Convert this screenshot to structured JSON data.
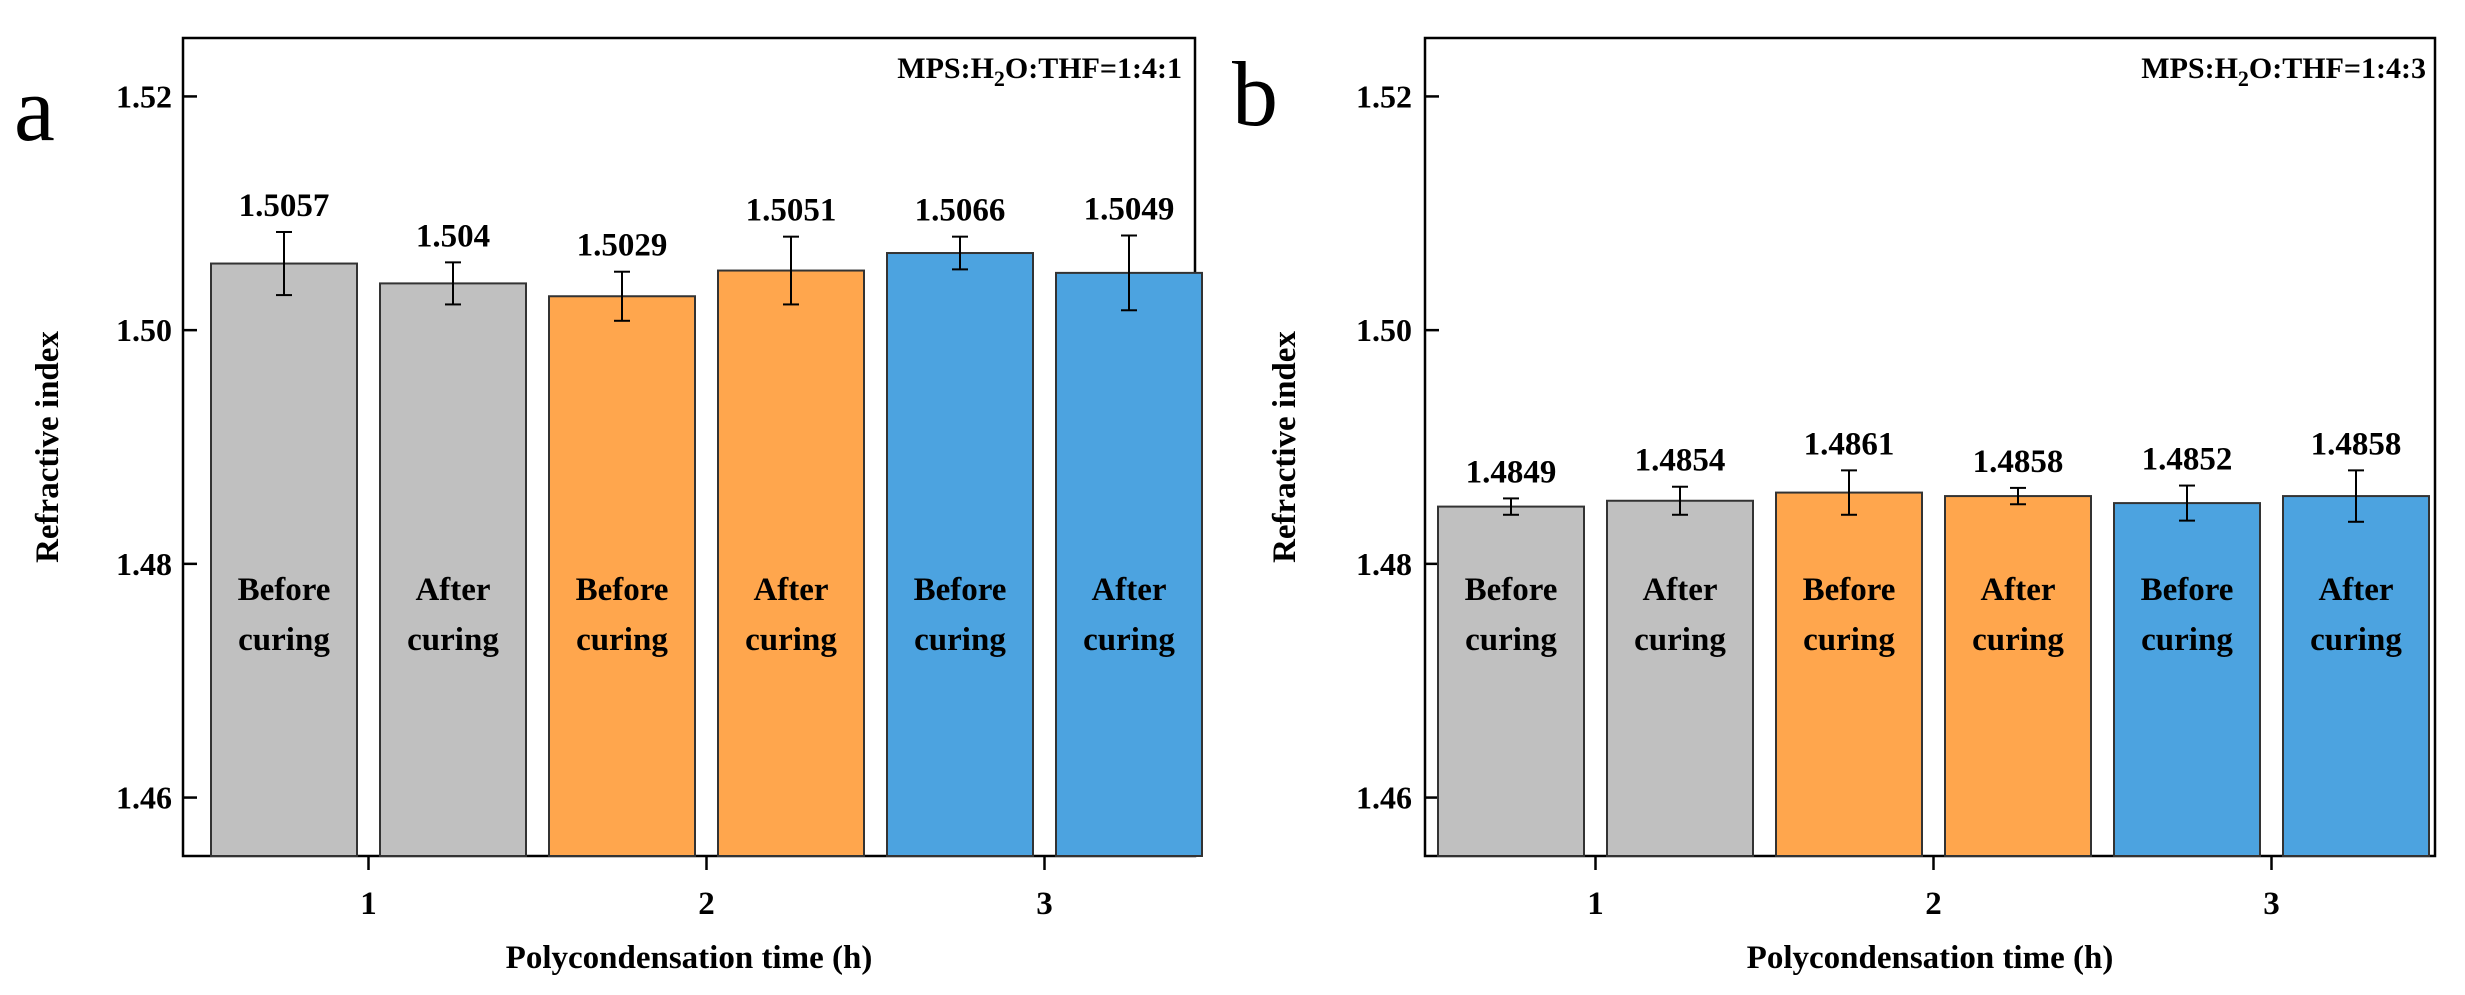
{
  "chart_data": [
    {
      "panel_label": "a",
      "type": "bar",
      "annotation": {
        "prefix": "MPS:H",
        "subscript": "2",
        "suffix": "O:THF=1:4:1"
      },
      "xlabel": "Polycondensation time (h)",
      "ylabel": "Refractive index",
      "ylim": [
        1.455,
        1.525
      ],
      "yticks": [
        1.46,
        1.48,
        1.5,
        1.52
      ],
      "ytick_labels": [
        "1.46",
        "1.48",
        "1.50",
        "1.52"
      ],
      "xticks": [
        {
          "label": "1",
          "after_bar": 1
        },
        {
          "label": "2",
          "after_bar": 3
        },
        {
          "label": "3",
          "after_bar": 5
        }
      ],
      "bars": [
        {
          "group": "1",
          "label_lines": [
            "Before",
            "curing"
          ],
          "value": 1.5057,
          "value_label": "1.5057",
          "error": 0.0027,
          "color": "#c0c0c0"
        },
        {
          "group": "1",
          "label_lines": [
            "After",
            "curing"
          ],
          "value": 1.504,
          "value_label": "1.504",
          "error": 0.0018,
          "color": "#c0c0c0"
        },
        {
          "group": "2",
          "label_lines": [
            "Before",
            "curing"
          ],
          "value": 1.5029,
          "value_label": "1.5029",
          "error": 0.0021,
          "color": "#ffa64d"
        },
        {
          "group": "2",
          "label_lines": [
            "After",
            "curing"
          ],
          "value": 1.5051,
          "value_label": "1.5051",
          "error": 0.0029,
          "color": "#ffa64d"
        },
        {
          "group": "3",
          "label_lines": [
            "Before",
            "curing"
          ],
          "value": 1.5066,
          "value_label": "1.5066",
          "error": 0.0014,
          "color": "#4ca3e0"
        },
        {
          "group": "3",
          "label_lines": [
            "After",
            "curing"
          ],
          "value": 1.5049,
          "value_label": "1.5049",
          "error": 0.0032,
          "color": "#4ca3e0"
        }
      ]
    },
    {
      "panel_label": "b",
      "type": "bar",
      "annotation": {
        "prefix": "MPS:H",
        "subscript": "2",
        "suffix": "O:THF=1:4:3"
      },
      "xlabel": "Polycondensation time (h)",
      "ylabel": "Refractive index",
      "ylim": [
        1.455,
        1.525
      ],
      "yticks": [
        1.46,
        1.48,
        1.5,
        1.52
      ],
      "ytick_labels": [
        "1.46",
        "1.48",
        "1.50",
        "1.52"
      ],
      "xticks": [
        {
          "label": "1",
          "after_bar": 1
        },
        {
          "label": "2",
          "after_bar": 3
        },
        {
          "label": "3",
          "after_bar": 5
        }
      ],
      "bars": [
        {
          "group": "1",
          "label_lines": [
            "Before",
            "curing"
          ],
          "value": 1.4849,
          "value_label": "1.4849",
          "error": 0.0007,
          "color": "#c0c0c0"
        },
        {
          "group": "1",
          "label_lines": [
            "After",
            "curing"
          ],
          "value": 1.4854,
          "value_label": "1.4854",
          "error": 0.0012,
          "color": "#c0c0c0"
        },
        {
          "group": "2",
          "label_lines": [
            "Before",
            "curing"
          ],
          "value": 1.4861,
          "value_label": "1.4861",
          "error": 0.0019,
          "color": "#ffa64d"
        },
        {
          "group": "2",
          "label_lines": [
            "After",
            "curing"
          ],
          "value": 1.4858,
          "value_label": "1.4858",
          "error": 0.0007,
          "color": "#ffa64d"
        },
        {
          "group": "3",
          "label_lines": [
            "Before",
            "curing"
          ],
          "value": 1.4852,
          "value_label": "1.4852",
          "error": 0.0015,
          "color": "#4ca3e0"
        },
        {
          "group": "3",
          "label_lines": [
            "After",
            "curing"
          ],
          "value": 1.4858,
          "value_label": "1.4858",
          "error": 0.0022,
          "color": "#4ca3e0"
        }
      ]
    }
  ]
}
